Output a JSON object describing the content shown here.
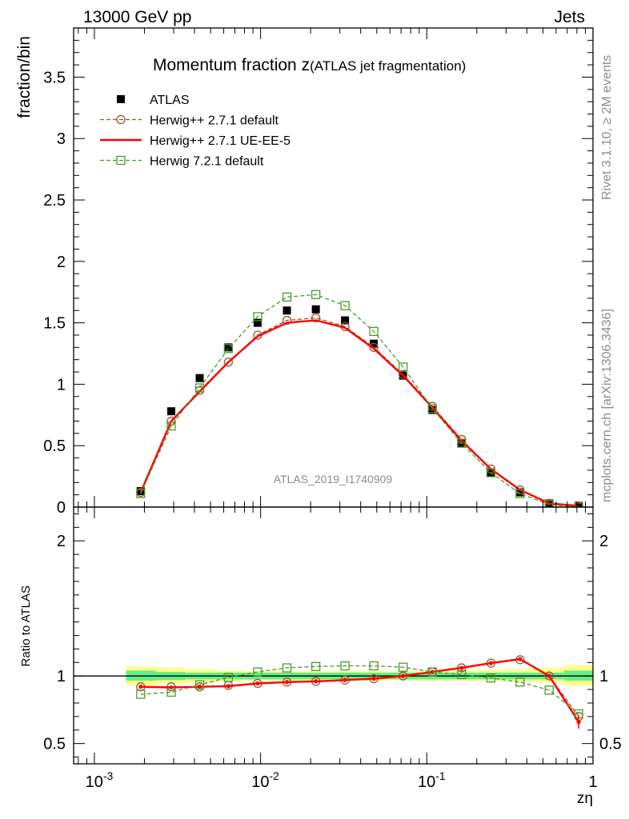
{
  "header": {
    "energy_label": "13000 GeV pp",
    "category_label": "Jets"
  },
  "side_labels": {
    "rivet": "Rivet 3.1.10, ≥ 2M events",
    "mcplots": "mcplots.cern.ch [arXiv:1306.3436]"
  },
  "chart_data": [
    {
      "type": "line",
      "title_main": "Momentum fraction z",
      "title_sub": "(ATLAS jet fragmentation)",
      "ylabel": "fraction/bin",
      "xlabel": "zη",
      "watermark": "ATLAS_2019_I1740909",
      "xscale": "log",
      "xlim": [
        0.00075,
        1.0
      ],
      "ylim": [
        0,
        3.9
      ],
      "yticks": [
        0,
        0.5,
        1,
        1.5,
        2,
        2.5,
        3,
        3.5
      ],
      "ytick_labels": [
        "0",
        "0.5",
        "1",
        "1.5",
        "2",
        "2.5",
        "3",
        "3.5"
      ],
      "legend_position": "top-left",
      "x": [
        0.0019,
        0.0029,
        0.0043,
        0.0064,
        0.0096,
        0.0144,
        0.0215,
        0.0322,
        0.048,
        0.072,
        0.108,
        0.162,
        0.243,
        0.364,
        0.545,
        0.82
      ],
      "series": [
        {
          "name": "ATLAS",
          "style": "markers",
          "marker": "filled-square",
          "color": "#000000",
          "values": [
            0.13,
            0.78,
            1.05,
            1.3,
            1.5,
            1.6,
            1.61,
            1.52,
            1.33,
            1.07,
            0.79,
            0.52,
            0.28,
            0.12,
            0.03,
            0.01
          ]
        },
        {
          "name": "Herwig++ 2.7.1 default",
          "style": "dashed",
          "marker": "open-circle",
          "color": "#a0522d",
          "values": [
            0.12,
            0.7,
            0.95,
            1.18,
            1.4,
            1.52,
            1.54,
            1.47,
            1.3,
            1.08,
            0.82,
            0.55,
            0.31,
            0.14,
            0.03,
            0.01
          ]
        },
        {
          "name": "Herwig++ 2.7.1 UE-EE-5",
          "style": "solid",
          "marker": "none",
          "color": "#ff0000",
          "values": [
            0.12,
            0.7,
            0.94,
            1.18,
            1.39,
            1.5,
            1.52,
            1.46,
            1.29,
            1.07,
            0.81,
            0.54,
            0.31,
            0.14,
            0.03,
            0.01
          ]
        },
        {
          "name": "Herwig 7.2.1 default",
          "style": "dashed",
          "marker": "open-square",
          "color": "#4a9a2a",
          "values": [
            0.11,
            0.66,
            0.97,
            1.29,
            1.55,
            1.71,
            1.73,
            1.64,
            1.43,
            1.14,
            0.8,
            0.52,
            0.28,
            0.11,
            0.02,
            0.0
          ]
        }
      ]
    },
    {
      "type": "line",
      "ylabel": "Ratio to ATLAS",
      "xlabel": "zη",
      "xscale": "log",
      "xlim": [
        0.00075,
        1.0
      ],
      "ylim": [
        0.35,
        2.25
      ],
      "yticks": [
        0.5,
        1,
        2
      ],
      "ytick_labels": [
        "0.5",
        "1",
        "2"
      ],
      "xticks": [
        0.001,
        0.01,
        0.1,
        1
      ],
      "xtick_labels": [
        "10",
        "10",
        "10",
        "1"
      ],
      "xtick_exponents": [
        "-3",
        "-2",
        "-1",
        ""
      ],
      "reference_line": 1.0,
      "band_edges": [
        0.00155,
        0.00235,
        0.00355,
        0.0053,
        0.0079,
        0.0118,
        0.0177,
        0.0265,
        0.0397,
        0.0595,
        0.089,
        0.133,
        0.2,
        0.3,
        0.45,
        0.67,
        1.0
      ],
      "band_inner": {
        "color": "#66ee88",
        "lower": [
          0.965,
          0.97,
          0.975,
          0.975,
          0.975,
          0.975,
          0.975,
          0.975,
          0.975,
          0.975,
          0.975,
          0.975,
          0.975,
          0.975,
          0.975,
          0.965
        ],
        "upper": [
          1.04,
          1.03,
          1.025,
          1.025,
          1.025,
          1.025,
          1.025,
          1.025,
          1.025,
          1.025,
          1.025,
          1.025,
          1.025,
          1.025,
          1.025,
          1.04
        ]
      },
      "band_outer": {
        "color": "#ffff88",
        "lower": [
          0.93,
          0.94,
          0.95,
          0.96,
          0.965,
          0.965,
          0.965,
          0.965,
          0.965,
          0.965,
          0.965,
          0.965,
          0.965,
          0.96,
          0.95,
          0.93
        ],
        "upper": [
          1.07,
          1.06,
          1.05,
          1.04,
          1.035,
          1.035,
          1.035,
          1.035,
          1.035,
          1.035,
          1.035,
          1.04,
          1.045,
          1.05,
          1.06,
          1.08
        ]
      },
      "x": [
        0.0019,
        0.0029,
        0.0043,
        0.0064,
        0.0096,
        0.0144,
        0.0215,
        0.0322,
        0.048,
        0.072,
        0.108,
        0.162,
        0.243,
        0.364,
        0.545,
        0.82
      ],
      "series": [
        {
          "name": "Herwig++ 2.7.1 default",
          "style": "dashed",
          "marker": "open-circle",
          "color": "#a0522d",
          "values": [
            0.92,
            0.92,
            0.92,
            0.93,
            0.945,
            0.955,
            0.96,
            0.97,
            0.98,
            1.0,
            1.03,
            1.06,
            1.095,
            1.12,
            1.0,
            0.7
          ]
        },
        {
          "name": "Herwig++ 2.7.1 UE-EE-5",
          "style": "solid",
          "marker": "dot",
          "color": "#ff0000",
          "values": [
            0.92,
            0.915,
            0.92,
            0.925,
            0.945,
            0.955,
            0.96,
            0.97,
            0.98,
            1.0,
            1.03,
            1.06,
            1.095,
            1.125,
            1.0,
            0.66
          ]
        },
        {
          "name": "Herwig 7.2.1 default",
          "style": "dashed",
          "marker": "open-square",
          "color": "#4a9a2a",
          "values": [
            0.865,
            0.88,
            0.935,
            0.99,
            1.03,
            1.06,
            1.07,
            1.075,
            1.075,
            1.065,
            1.03,
            1.01,
            0.985,
            0.955,
            0.895,
            0.72
          ]
        }
      ]
    }
  ]
}
